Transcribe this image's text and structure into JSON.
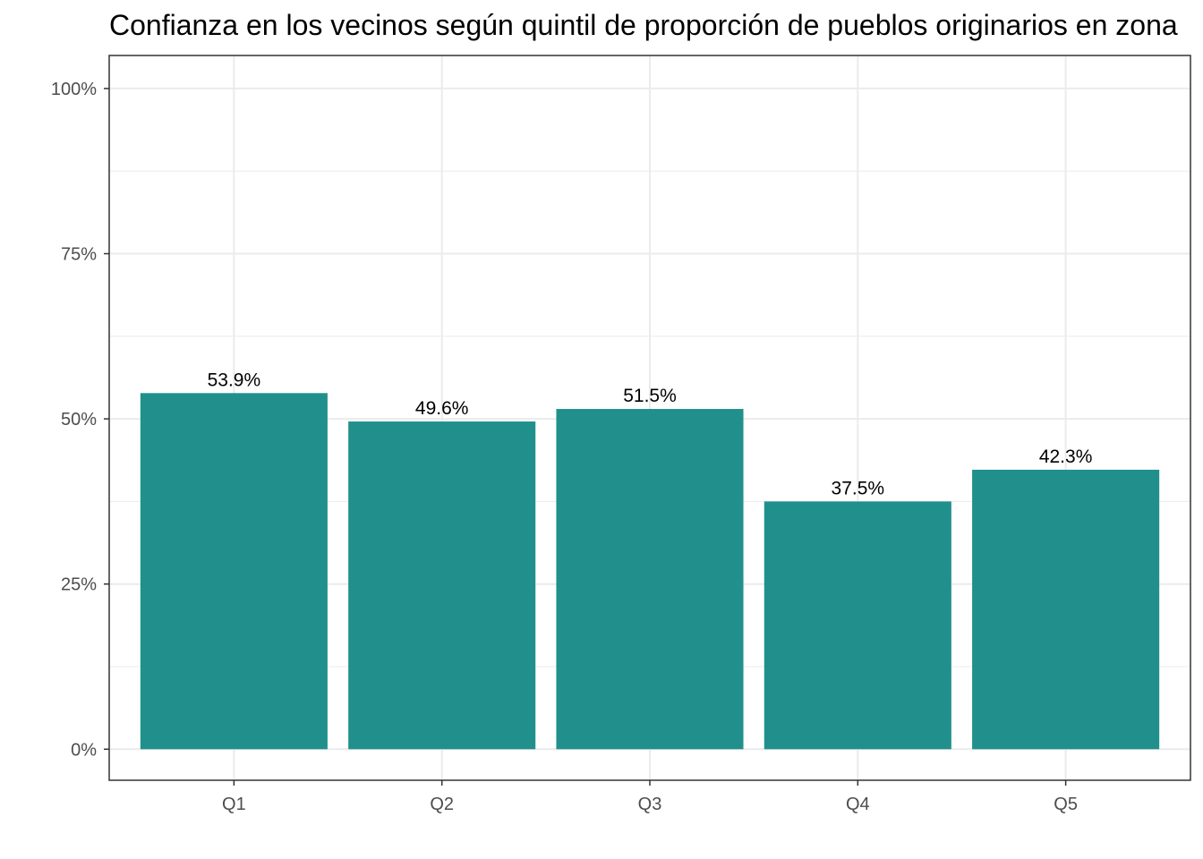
{
  "chart_data": {
    "type": "bar",
    "title": "Confianza en los vecinos según quintil de proporción de pueblos originarios en zona",
    "xlabel": "",
    "ylabel": "",
    "categories": [
      "Q1",
      "Q2",
      "Q3",
      "Q4",
      "Q5"
    ],
    "values": [
      53.9,
      49.6,
      51.5,
      37.5,
      42.3
    ],
    "value_labels": [
      "53.9%",
      "49.6%",
      "51.5%",
      "37.5%",
      "42.3%"
    ],
    "ylim": [
      -4.7,
      105
    ],
    "yticks": [
      0,
      25,
      50,
      75,
      100
    ],
    "ytick_labels": [
      "0%",
      "25%",
      "50%",
      "75%",
      "100%"
    ],
    "grid": true,
    "legend": "none",
    "bar_color": "#21908C",
    "grid_color": "#EBEBEB",
    "axis_color": "#333333"
  }
}
